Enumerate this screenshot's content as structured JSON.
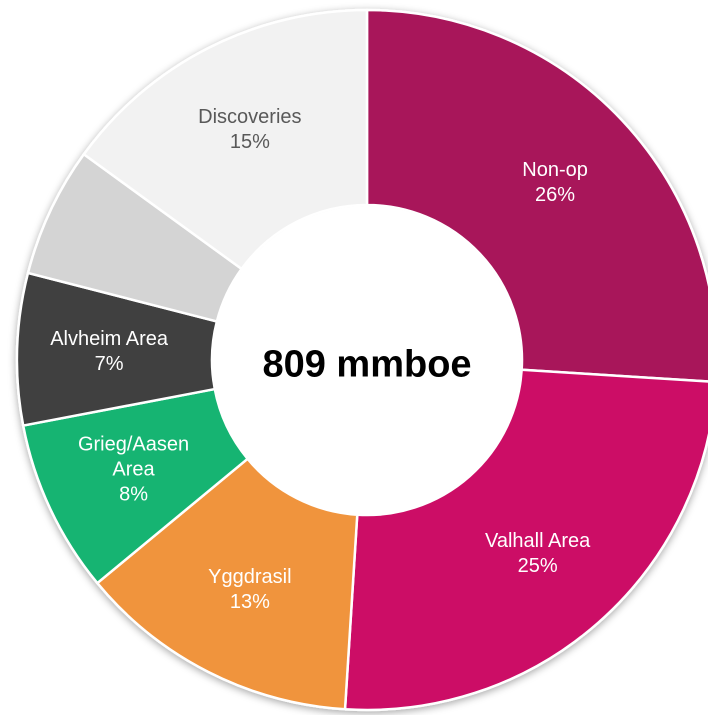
{
  "chart_data": {
    "type": "pie",
    "center_label": "809 mmboe",
    "categories": [
      "Non-op",
      "Valhall Area",
      "Yggdrasil",
      "Grieg/Aasen Area",
      "Alvheim Area",
      null,
      "Discoveries"
    ],
    "values": [
      26,
      25,
      13,
      8,
      7,
      6,
      15
    ],
    "value_labels": [
      "26%",
      "25%",
      "13%",
      "8%",
      "7%",
      null,
      "15%"
    ],
    "colors": [
      "#a8145a",
      "#cc1166",
      "#f0943c",
      "#14b472",
      "#404040",
      "#d4d4d4",
      "#f2f2f2"
    ]
  }
}
